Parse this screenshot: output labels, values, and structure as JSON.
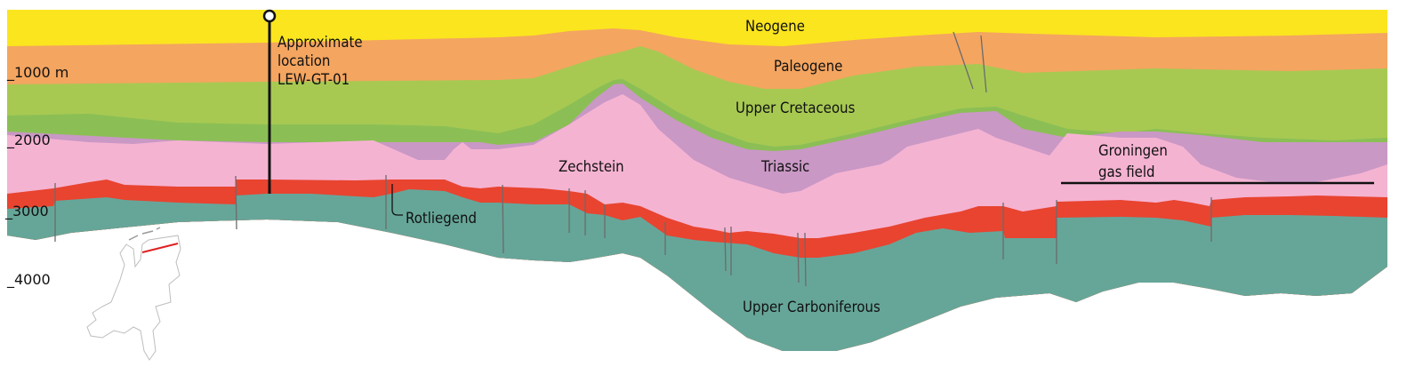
{
  "colors": {
    "neogene": "#fbe51f",
    "paleogene": "#f4a560",
    "upper_cretaceous": "#a7c952",
    "lower_cretaceous_band": "#8bbf55",
    "triassic": "#c998c5",
    "zechstein": "#f5b3d2",
    "rotliegend": "#e84430",
    "upper_carboniferous": "#66a699",
    "fault": "#6b6b6b",
    "map_section_line": "#e02020"
  },
  "depth_labels": [
    "_1000 m",
    "_2000",
    "_3000",
    "_4000"
  ],
  "units": {
    "neogene": "Neogene",
    "paleogene": "Paleogene",
    "upper_cretaceous": "Upper Cretaceous",
    "zechstein": "Zechstein",
    "triassic": "Triassic",
    "rotliegend": "Rotliegend",
    "upper_carboniferous": "Upper Carboniferous"
  },
  "well": {
    "line1": "Approximate",
    "line2": "location",
    "line3": "LEW-GT-01"
  },
  "gas_field": {
    "line1": "Groningen",
    "line2": "gas field"
  },
  "inset_map": {
    "icon": "netherlands-outline-map"
  }
}
